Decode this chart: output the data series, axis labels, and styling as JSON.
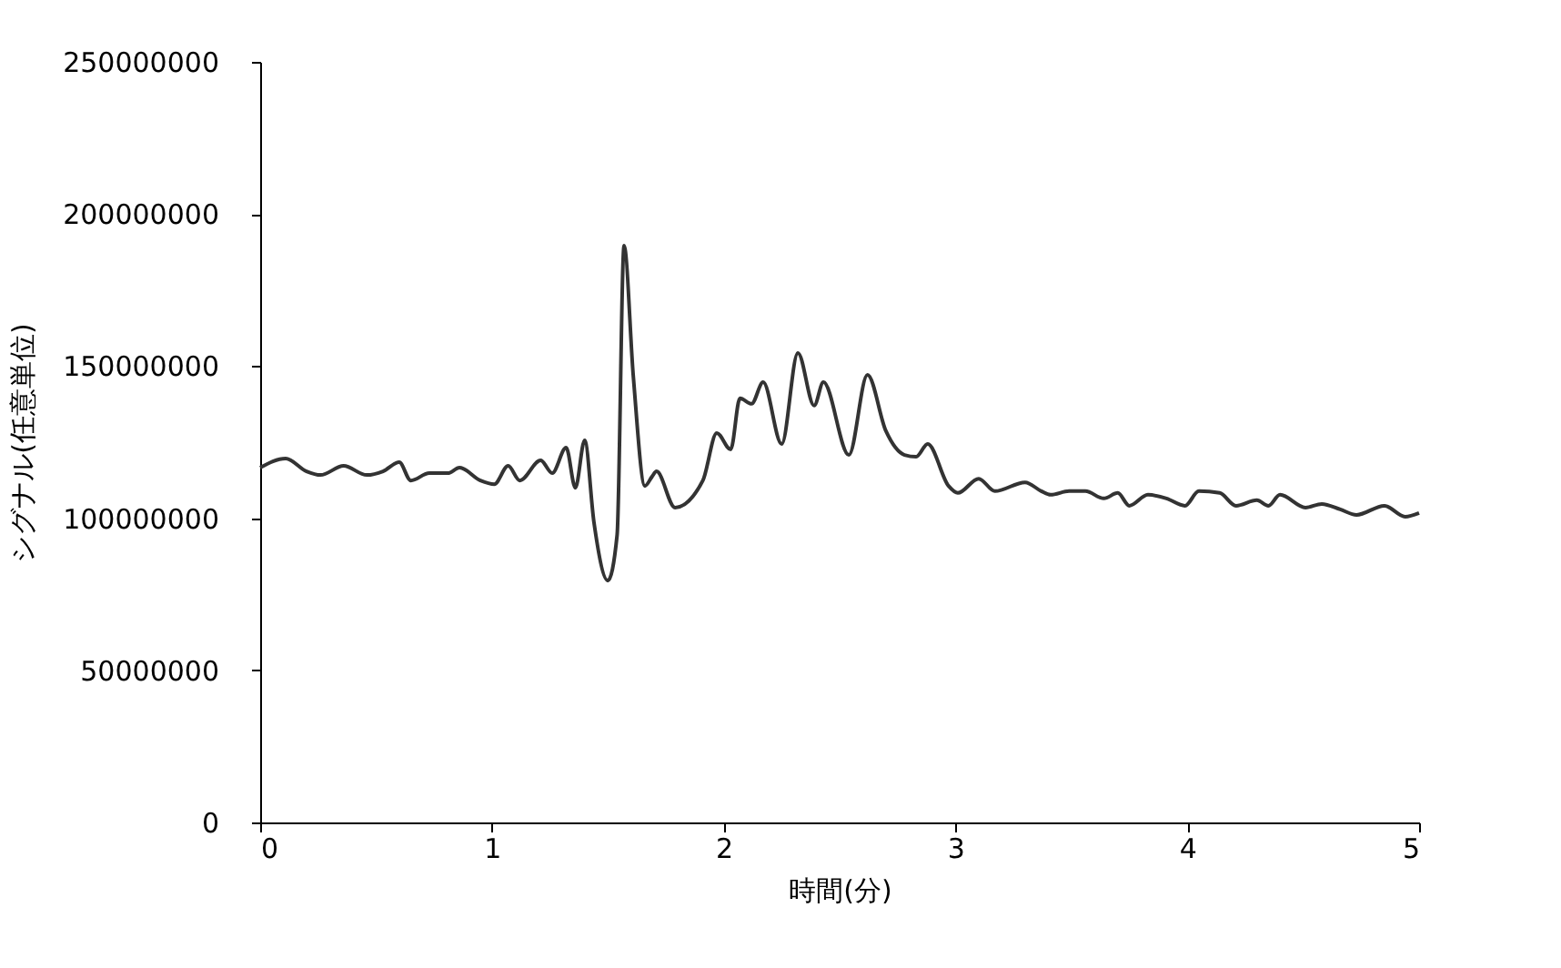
{
  "chart_data": {
    "type": "line",
    "xlabel": "時間(分)",
    "ylabel": "シグナル(任意単位)",
    "xlim": [
      0,
      5
    ],
    "xticks": [
      0,
      1,
      2,
      3,
      4,
      5
    ],
    "ylim": [
      0,
      250000000
    ],
    "yticks": [
      0,
      50000000,
      100000000,
      150000000,
      200000000,
      250000000
    ],
    "grid": false,
    "marker": "none",
    "line_style": "solid",
    "series": [
      {
        "color": "#333333",
        "x": [
          0,
          0.11,
          0.2,
          0.26,
          0.36,
          0.46,
          0.53,
          0.6,
          0.65,
          0.73,
          0.81,
          0.86,
          0.95,
          1.01,
          1.07,
          1.12,
          1.21,
          1.26,
          1.32,
          1.36,
          1.4,
          1.44,
          1.5,
          1.54,
          1.57,
          1.61,
          1.66,
          1.69,
          1.71,
          1.79,
          1.91,
          1.97,
          2.03,
          2.07,
          2.12,
          2.17,
          2.25,
          2.32,
          2.39,
          2.43,
          2.54,
          2.62,
          2.7,
          2.78,
          2.83,
          2.88,
          2.97,
          3.01,
          3.1,
          3.17,
          3.3,
          3.37,
          3.41,
          3.49,
          3.56,
          3.64,
          3.7,
          3.75,
          3.83,
          3.91,
          3.99,
          4.05,
          4.14,
          4.21,
          4.3,
          4.35,
          4.4,
          4.51,
          4.58,
          4.66,
          4.73,
          4.85,
          4.94,
          5
        ],
        "values": [
          116600000,
          119600000,
          115400000,
          114200000,
          117200000,
          114200000,
          115400000,
          118400000,
          112400000,
          114800000,
          114800000,
          116600000,
          112400000,
          111200000,
          117200000,
          112400000,
          119000000,
          114800000,
          123200000,
          110000000,
          125600000,
          98700000,
          79500000,
          94500000,
          189600000,
          146500000,
          110600000,
          113600000,
          115400000,
          103500000,
          112400000,
          128000000,
          122600000,
          139400000,
          137600000,
          144700000,
          124400000,
          154300000,
          137000000,
          144700000,
          120800000,
          147100000,
          128600000,
          120800000,
          120200000,
          124400000,
          110600000,
          108300000,
          113000000,
          108900000,
          111800000,
          108900000,
          107700000,
          108900000,
          108900000,
          106500000,
          108300000,
          104100000,
          107700000,
          106500000,
          104100000,
          108900000,
          108300000,
          104100000,
          105900000,
          104100000,
          107700000,
          103500000,
          104700000,
          102900000,
          101100000,
          104100000,
          100500000,
          101700000
        ]
      }
    ]
  }
}
